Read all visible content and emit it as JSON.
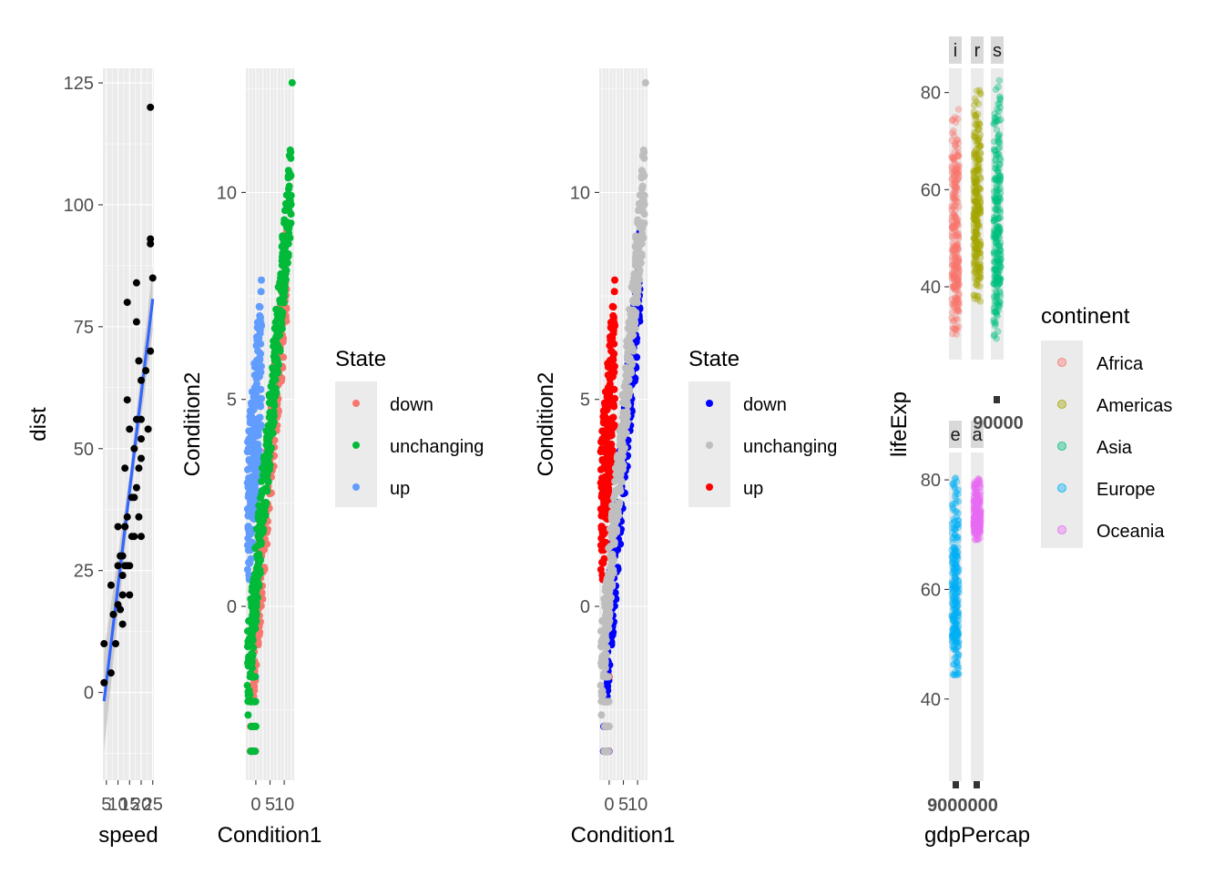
{
  "chart_data": [
    {
      "type": "scatter",
      "xlabel": "speed",
      "ylabel": "dist",
      "yticks": [
        0,
        25,
        50,
        75,
        100,
        125
      ],
      "xticks": [
        "5",
        "10",
        "15",
        "20",
        "25"
      ],
      "xlim": [
        3.5,
        25.5
      ],
      "ylim": [
        -18,
        128
      ],
      "point_color": "#000000",
      "smooth": {
        "method": "lm",
        "color": "#3366ff",
        "ribbon": "#999999",
        "line": [
          [
            4,
            -1.8
          ],
          [
            25,
            80.7
          ]
        ],
        "band_width": [
          [
            4,
            10
          ],
          [
            15,
            3
          ],
          [
            25,
            6.5
          ]
        ]
      },
      "points": [
        [
          4,
          2
        ],
        [
          4,
          10
        ],
        [
          7,
          4
        ],
        [
          7,
          22
        ],
        [
          8,
          16
        ],
        [
          9,
          10
        ],
        [
          10,
          18
        ],
        [
          10,
          26
        ],
        [
          10,
          34
        ],
        [
          11,
          17
        ],
        [
          11,
          28
        ],
        [
          12,
          14
        ],
        [
          12,
          20
        ],
        [
          12,
          24
        ],
        [
          12,
          28
        ],
        [
          13,
          26
        ],
        [
          13,
          34
        ],
        [
          13,
          34
        ],
        [
          13,
          46
        ],
        [
          14,
          26
        ],
        [
          14,
          36
        ],
        [
          14,
          60
        ],
        [
          14,
          80
        ],
        [
          15,
          20
        ],
        [
          15,
          26
        ],
        [
          15,
          54
        ],
        [
          16,
          32
        ],
        [
          16,
          40
        ],
        [
          17,
          32
        ],
        [
          17,
          40
        ],
        [
          17,
          50
        ],
        [
          18,
          42
        ],
        [
          18,
          56
        ],
        [
          18,
          76
        ],
        [
          18,
          84
        ],
        [
          19,
          36
        ],
        [
          19,
          46
        ],
        [
          19,
          68
        ],
        [
          20,
          32
        ],
        [
          20,
          48
        ],
        [
          20,
          52
        ],
        [
          20,
          56
        ],
        [
          20,
          64
        ],
        [
          22,
          66
        ],
        [
          23,
          54
        ],
        [
          24,
          70
        ],
        [
          24,
          92
        ],
        [
          24,
          93
        ],
        [
          24,
          120
        ],
        [
          25,
          85
        ]
      ]
    },
    {
      "type": "scatter",
      "xlabel": "Condition1",
      "ylabel": "Condition2",
      "yticks": [
        "0",
        "5",
        "10"
      ],
      "xticks": [
        "0",
        "5",
        "10"
      ],
      "xlim": [
        -3.5,
        13.5
      ],
      "ylim": [
        -4.2,
        13
      ],
      "legend": {
        "title": "State",
        "position": "right",
        "items": [
          {
            "label": "down",
            "color": "#F8766D"
          },
          {
            "label": "unchanging",
            "color": "#00BA38"
          },
          {
            "label": "up",
            "color": "#619CFF"
          }
        ]
      },
      "series": [
        {
          "name": "down",
          "color": "#F8766D",
          "x_range": [
            -1,
            11
          ],
          "offset": -0.6
        },
        {
          "name": "unchanging",
          "color": "#00BA38",
          "x_range": [
            -3,
            12.5
          ],
          "offset": 0
        },
        {
          "name": "up",
          "color": "#619CFF",
          "x_range": [
            -3,
            10
          ],
          "offset": 1.2
        }
      ],
      "trend": {
        "slope": 0.78,
        "intercept": 0.55
      }
    },
    {
      "type": "scatter",
      "xlabel": "Condition1",
      "ylabel": "Condition2",
      "yticks": [
        "0",
        "5",
        "10"
      ],
      "xticks": [
        "0",
        "5",
        "10"
      ],
      "xlim": [
        -3.5,
        13.5
      ],
      "ylim": [
        -4.2,
        13
      ],
      "legend": {
        "title": "State",
        "position": "right",
        "items": [
          {
            "label": "down",
            "color": "#0000FF"
          },
          {
            "label": "unchanging",
            "color": "#BEBEBE"
          },
          {
            "label": "up",
            "color": "#FF0000"
          }
        ]
      },
      "series": [
        {
          "name": "down",
          "color": "#0000FF",
          "x_range": [
            -1,
            11
          ],
          "offset": -0.6
        },
        {
          "name": "unchanging",
          "color": "#BEBEBE",
          "x_range": [
            -3,
            12.5
          ],
          "offset": 0
        },
        {
          "name": "up",
          "color": "#FF0000",
          "x_range": [
            -3,
            10
          ],
          "offset": 1.2
        }
      ],
      "trend": {
        "slope": 0.78,
        "intercept": 0.55
      }
    },
    {
      "type": "scatter",
      "xlabel": "gdpPercap",
      "ylabel": "lifeExp",
      "yticks": [
        "40",
        "60",
        "80"
      ],
      "xtick_label_text": "90000",
      "xtick_label_row2": "9000000",
      "legend": {
        "title": "continent",
        "position": "right",
        "items": [
          {
            "label": "Africa",
            "color": "#F8766D"
          },
          {
            "label": "Americas",
            "color": "#A3A500"
          },
          {
            "label": "Asia",
            "color": "#00BF7D"
          },
          {
            "label": "Europe",
            "color": "#00B0F6"
          },
          {
            "label": "Oceania",
            "color": "#E76BF3"
          }
        ]
      },
      "facets": [
        {
          "strip": "i",
          "color": "#F8766D",
          "ylim": [
            30,
            77
          ],
          "row": 0,
          "col": 0
        },
        {
          "strip": "r",
          "color": "#A3A500",
          "ylim": [
            37,
            81
          ],
          "row": 0,
          "col": 1
        },
        {
          "strip": "s",
          "color": "#00BF7D",
          "ylim": [
            29,
            83
          ],
          "row": 0,
          "col": 2
        },
        {
          "strip": "e",
          "color": "#00B0F6",
          "ylim": [
            44,
            82
          ],
          "row": 1,
          "col": 0
        },
        {
          "strip": "a",
          "color": "#E76BF3",
          "ylim": [
            69,
            81
          ],
          "row": 1,
          "col": 1
        }
      ]
    }
  ]
}
